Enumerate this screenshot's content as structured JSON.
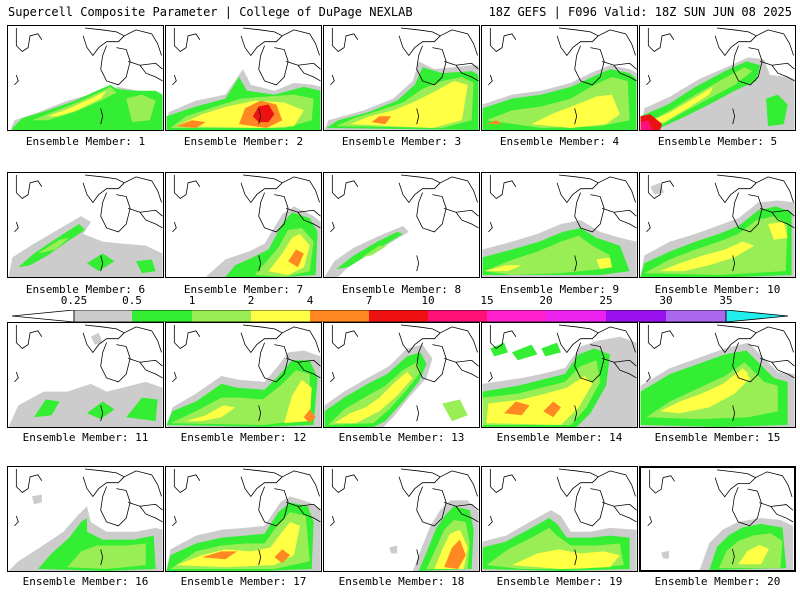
{
  "header": {
    "left": "Supercell Composite Parameter | College of DuPage NEXLAB",
    "right": "18Z GEFS | F096 Valid: 18Z SUN JUN 08 2025"
  },
  "colors": {
    "c025": "#cccccc",
    "c05": "#33ee33",
    "c1": "#99ee55",
    "c2": "#ffff44",
    "c4": "#ff8822",
    "c7": "#ee1111",
    "c10": "#ff1177",
    "c15": "#ff22cc",
    "c20": "#ee22ee",
    "c25": "#9911ee",
    "c30": "#aa66ee",
    "c35": "#22eeee"
  },
  "colorbar": {
    "labels": [
      "0.25",
      "0.5",
      "1",
      "2",
      "4",
      "7",
      "10",
      "15",
      "20",
      "25",
      "30",
      "35"
    ]
  },
  "members": [
    {
      "caption": "Ensemble Member: 1"
    },
    {
      "caption": "Ensemble Member: 2"
    },
    {
      "caption": "Ensemble Member: 3"
    },
    {
      "caption": "Ensemble Member: 4"
    },
    {
      "caption": "Ensemble Member: 5"
    },
    {
      "caption": "Ensemble Member: 6"
    },
    {
      "caption": "Ensemble Member: 7"
    },
    {
      "caption": "Ensemble Member: 8"
    },
    {
      "caption": "Ensemble Member: 9"
    },
    {
      "caption": "Ensemble Member: 10"
    },
    {
      "caption": "Ensemble Member: 11"
    },
    {
      "caption": "Ensemble Member: 12"
    },
    {
      "caption": "Ensemble Member: 13"
    },
    {
      "caption": "Ensemble Member: 14"
    },
    {
      "caption": "Ensemble Member: 15"
    },
    {
      "caption": "Ensemble Member: 16"
    },
    {
      "caption": "Ensemble Member: 17"
    },
    {
      "caption": "Ensemble Member: 18"
    },
    {
      "caption": "Ensemble Member: 19"
    },
    {
      "caption": "Ensemble Member: 20"
    }
  ]
}
